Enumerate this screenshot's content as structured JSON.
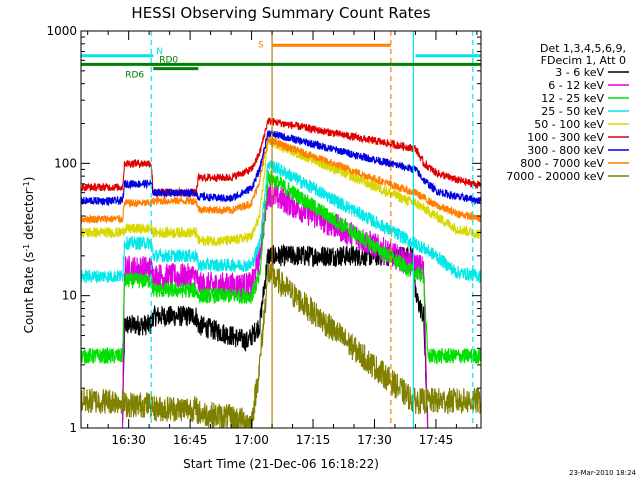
{
  "chart_data": {
    "type": "line",
    "title": "HESSI Observing Summary Count Rates",
    "xlabel": "Start Time (21-Dec-06 16:18:22)",
    "ylabel_main": "Count Rate (s",
    "ylabel_sup1": "-1",
    "ylabel_mid": " detector",
    "ylabel_sup2": "-1",
    "ylabel_end": ")",
    "date_stamp": "23-Mar-2010 18:24",
    "xlim": [
      "16:18:22",
      "17:56:00"
    ],
    "x_ticks": [
      "16:30",
      "16:45",
      "17:00",
      "17:15",
      "17:30",
      "17:45"
    ],
    "y_scale": "log",
    "ylim": [
      1,
      1000
    ],
    "y_ticks": [
      "1",
      "10",
      "100",
      "1000"
    ],
    "legend_header": [
      "Det 1,3,4,5,6,9,",
      "FDecim 1, Att 0"
    ],
    "legend": [
      {
        "label": "3 - 6 keV",
        "color": "#000000"
      },
      {
        "label": "6 - 12 keV",
        "color": "#e000e0"
      },
      {
        "label": "12 - 25 keV",
        "color": "#00e000"
      },
      {
        "label": "25 - 50 keV",
        "color": "#00e8e8"
      },
      {
        "label": "50 - 100 keV",
        "color": "#d8d800"
      },
      {
        "label": "100 - 300 keV",
        "color": "#e00000"
      },
      {
        "label": "300 - 800 keV",
        "color": "#0000e0"
      },
      {
        "label": "800 - 7000 keV",
        "color": "#ff8000"
      },
      {
        "label": "7000 - 20000 keV",
        "color": "#808000"
      }
    ],
    "flags": [
      {
        "label": "N",
        "color": "#00e8e8",
        "start": "16:18:22",
        "end": "16:36:00",
        "restart": "17:40:00",
        "restart_end": "17:56:00"
      },
      {
        "label": "RD0",
        "color": "#008000",
        "start": "16:36:00",
        "end": "16:47:00"
      },
      {
        "label": "RD6",
        "color": "#008000",
        "start": "16:18:22",
        "end": "17:56:00"
      },
      {
        "label": "S",
        "color": "#ff8000",
        "start": "17:05:00",
        "end": "17:34:00"
      }
    ],
    "markers": [
      {
        "time": "16:35:30",
        "color": "#00e8e8",
        "style": "dashed"
      },
      {
        "time": "17:05:00",
        "color": "#b08000",
        "style": "solid"
      },
      {
        "time": "17:34:00",
        "color": "#ff8000",
        "style": "dashed"
      },
      {
        "time": "17:39:30",
        "color": "#00e8e8",
        "style": "solid"
      },
      {
        "time": "17:54:00",
        "color": "#00e8e8",
        "style": "dashed"
      }
    ],
    "series": [
      {
        "name": "3 - 6 keV",
        "color": "#000000",
        "x": [
          "16:28:30",
          "16:29:00",
          "16:35:30",
          "16:36:00",
          "16:46:30",
          "16:47:00",
          "16:55:00",
          "16:59:00",
          "17:02:00",
          "17:04:00",
          "17:39:30",
          "17:40:00",
          "17:42:00",
          "17:43:00"
        ],
        "y": [
          1,
          6,
          6,
          7,
          7,
          6,
          5,
          4.5,
          6,
          20,
          20,
          10,
          7,
          1
        ]
      },
      {
        "name": "6 - 12 keV",
        "color": "#e000e0",
        "x": [
          "16:28:30",
          "16:29:00",
          "16:35:30",
          "16:36:00",
          "16:46:30",
          "16:47:00",
          "17:00:00",
          "17:02:00",
          "17:04:00",
          "17:39:30",
          "17:40:00",
          "17:42:00",
          "17:43:00"
        ],
        "y": [
          1,
          16,
          16,
          14,
          14,
          12,
          12,
          20,
          60,
          17,
          17,
          16,
          1
        ]
      },
      {
        "name": "12 - 25 keV",
        "color": "#00e000",
        "x": [
          "16:18:22",
          "16:28:30",
          "16:29:00",
          "16:35:30",
          "16:36:00",
          "16:46:30",
          "16:47:00",
          "17:00:00",
          "17:02:00",
          "17:04:00",
          "17:39:30",
          "17:40:00",
          "17:42:00",
          "17:43:00",
          "17:56:00"
        ],
        "y": [
          3.5,
          3.5,
          13,
          13,
          11,
          11,
          10,
          10,
          14,
          80,
          15,
          15,
          14,
          3.5,
          3.5
        ]
      },
      {
        "name": "25 - 50 keV",
        "color": "#00e8e8",
        "x": [
          "16:18:22",
          "16:28:30",
          "16:29:00",
          "16:35:30",
          "16:36:00",
          "16:46:30",
          "16:47:00",
          "17:00:00",
          "17:02:00",
          "17:04:00",
          "17:39:30",
          "17:40:00",
          "17:45:00",
          "17:50:00",
          "17:56:00"
        ],
        "y": [
          14,
          14,
          25,
          25,
          20,
          20,
          17,
          17,
          25,
          100,
          25,
          25,
          20,
          15,
          14
        ]
      },
      {
        "name": "50 - 100 keV",
        "color": "#d8d800",
        "x": [
          "16:18:22",
          "16:28:30",
          "16:29:00",
          "16:35:30",
          "16:36:00",
          "16:46:30",
          "16:47:00",
          "16:55:00",
          "17:00:00",
          "17:02:00",
          "17:04:00",
          "17:39:30",
          "17:40:00",
          "17:45:00",
          "17:50:00",
          "17:56:00"
        ],
        "y": [
          30,
          30,
          32,
          32,
          30,
          30,
          26,
          26,
          28,
          40,
          150,
          50,
          50,
          40,
          32,
          29
        ]
      },
      {
        "name": "100 - 300 keV",
        "color": "#e00000",
        "x": [
          "16:18:22",
          "16:28:30",
          "16:29:00",
          "16:35:30",
          "16:36:00",
          "16:46:30",
          "16:47:00",
          "16:55:00",
          "17:00:00",
          "17:02:00",
          "17:04:00",
          "17:39:30",
          "17:40:00",
          "17:42:00",
          "17:45:00",
          "17:50:00",
          "17:56:00"
        ],
        "y": [
          66,
          66,
          100,
          100,
          60,
          60,
          78,
          78,
          90,
          120,
          210,
          130,
          130,
          100,
          85,
          75,
          68
        ]
      },
      {
        "name": "300 - 800 keV",
        "color": "#0000e0",
        "x": [
          "16:18:22",
          "16:28:30",
          "16:29:00",
          "16:35:30",
          "16:36:00",
          "16:46:30",
          "16:47:00",
          "16:55:00",
          "17:00:00",
          "17:02:00",
          "17:04:00",
          "17:39:30",
          "17:40:00",
          "17:42:00",
          "17:45:00",
          "17:50:00",
          "17:56:00"
        ],
        "y": [
          52,
          52,
          70,
          70,
          60,
          60,
          56,
          54,
          65,
          90,
          170,
          90,
          90,
          75,
          62,
          56,
          52
        ]
      },
      {
        "name": "800 - 7000 keV",
        "color": "#ff8000",
        "x": [
          "16:18:22",
          "16:28:30",
          "16:29:00",
          "16:35:30",
          "16:36:00",
          "16:46:30",
          "16:47:00",
          "16:55:00",
          "17:00:00",
          "17:02:00",
          "17:04:00",
          "17:39:30",
          "17:40:00",
          "17:45:00",
          "17:50:00",
          "17:56:00"
        ],
        "y": [
          38,
          38,
          50,
          50,
          52,
          52,
          45,
          44,
          50,
          75,
          150,
          60,
          60,
          48,
          42,
          38
        ]
      },
      {
        "name": "7000 - 20000 keV",
        "color": "#808000",
        "x": [
          "16:18:22",
          "16:28:30",
          "16:29:00",
          "16:35:30",
          "16:36:00",
          "16:46:30",
          "16:47:00",
          "16:55:00",
          "17:00:00",
          "17:02:00",
          "17:04:00",
          "17:39:30",
          "17:40:00",
          "17:56:00"
        ],
        "y": [
          1.6,
          1.6,
          1.5,
          1.5,
          1.4,
          1.4,
          1.3,
          1.2,
          1.1,
          3,
          15,
          1.6,
          1.6,
          1.6
        ]
      }
    ]
  }
}
